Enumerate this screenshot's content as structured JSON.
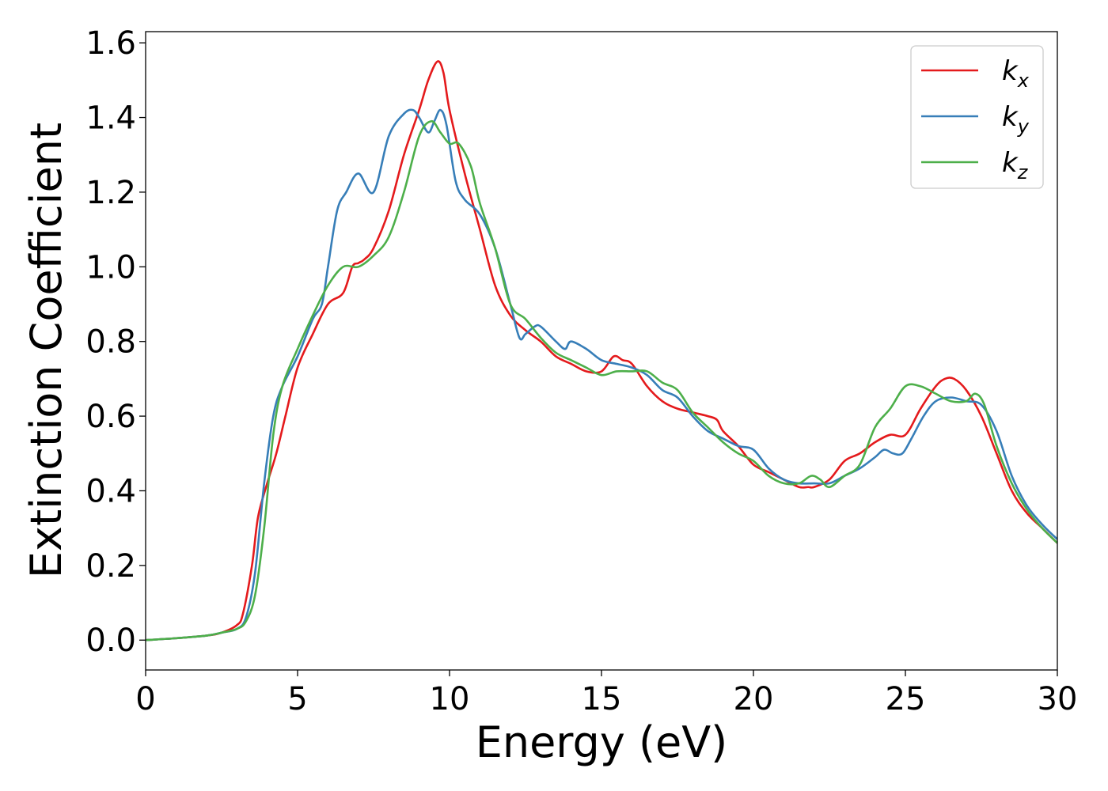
{
  "chart_data": {
    "type": "line",
    "xlabel": "Energy (eV)",
    "ylabel": "Extinction Coefficient",
    "xlim": [
      0,
      30
    ],
    "ylim": [
      -0.08,
      1.63
    ],
    "xticks": [
      0,
      5,
      10,
      15,
      20,
      25,
      30
    ],
    "yticks": [
      0.0,
      0.2,
      0.4,
      0.6,
      0.8,
      1.0,
      1.2,
      1.4,
      1.6
    ],
    "xtick_labels": [
      "0",
      "5",
      "10",
      "15",
      "20",
      "25",
      "30"
    ],
    "ytick_labels": [
      "0.0",
      "0.2",
      "0.4",
      "0.6",
      "0.8",
      "1.0",
      "1.2",
      "1.4",
      "1.6"
    ],
    "grid": false,
    "legend_position": "top-right",
    "series": [
      {
        "name": "k_x",
        "legend_main": "k",
        "legend_sub": "x",
        "color": "#e41a1c",
        "x": [
          0,
          1,
          2,
          2.5,
          3,
          3.2,
          3.5,
          3.7,
          4,
          4.3,
          4.6,
          5,
          5.5,
          6,
          6.5,
          6.8,
          7,
          7.2,
          7.5,
          8,
          8.5,
          9,
          9.3,
          9.6,
          9.8,
          10,
          10.5,
          11,
          11.5,
          12,
          12.5,
          13,
          13.5,
          14,
          14.5,
          15,
          15.4,
          15.7,
          16,
          16.5,
          17,
          17.5,
          18,
          18.5,
          18.8,
          19,
          19.5,
          20,
          20.5,
          21,
          21.5,
          21.8,
          22,
          22.5,
          23,
          23.5,
          24,
          24.5,
          25,
          25.5,
          26,
          26.3,
          26.6,
          27,
          27.5,
          28,
          28.5,
          29,
          29.5,
          30
        ],
        "y": [
          0,
          0.005,
          0.012,
          0.02,
          0.04,
          0.07,
          0.2,
          0.33,
          0.42,
          0.5,
          0.6,
          0.73,
          0.82,
          0.9,
          0.93,
          1.0,
          1.01,
          1.02,
          1.05,
          1.15,
          1.3,
          1.42,
          1.5,
          1.55,
          1.52,
          1.42,
          1.25,
          1.1,
          0.95,
          0.87,
          0.83,
          0.8,
          0.76,
          0.74,
          0.72,
          0.72,
          0.76,
          0.75,
          0.74,
          0.68,
          0.64,
          0.62,
          0.61,
          0.6,
          0.59,
          0.56,
          0.52,
          0.47,
          0.45,
          0.43,
          0.41,
          0.41,
          0.41,
          0.43,
          0.48,
          0.5,
          0.53,
          0.55,
          0.55,
          0.62,
          0.68,
          0.7,
          0.7,
          0.67,
          0.6,
          0.5,
          0.4,
          0.34,
          0.3,
          0.26
        ]
      },
      {
        "name": "k_y",
        "legend_main": "k",
        "legend_sub": "y",
        "color": "#377eb8",
        "x": [
          0,
          1,
          2,
          2.5,
          3,
          3.3,
          3.6,
          3.9,
          4.2,
          4.5,
          5,
          5.5,
          5.8,
          6,
          6.3,
          6.6,
          7,
          7.5,
          8,
          8.5,
          8.8,
          9,
          9.3,
          9.5,
          9.7,
          9.9,
          10.2,
          10.5,
          11,
          11.5,
          12,
          12.3,
          12.5,
          12.8,
          13,
          13.5,
          13.8,
          14,
          14.5,
          15,
          15.5,
          16,
          16.5,
          17,
          17.5,
          18,
          18.5,
          19,
          19.5,
          20,
          20.5,
          21,
          21.5,
          22,
          22.5,
          23,
          23.5,
          24,
          24.3,
          24.6,
          24.9,
          25.2,
          25.6,
          26,
          26.5,
          27,
          27.5,
          28,
          28.5,
          29,
          29.5,
          30
        ],
        "y": [
          0,
          0.005,
          0.012,
          0.02,
          0.03,
          0.06,
          0.18,
          0.42,
          0.6,
          0.68,
          0.76,
          0.86,
          0.9,
          1.0,
          1.15,
          1.2,
          1.25,
          1.2,
          1.35,
          1.41,
          1.42,
          1.4,
          1.36,
          1.39,
          1.42,
          1.38,
          1.23,
          1.18,
          1.14,
          1.05,
          0.9,
          0.81,
          0.82,
          0.84,
          0.84,
          0.8,
          0.78,
          0.8,
          0.78,
          0.75,
          0.74,
          0.73,
          0.71,
          0.67,
          0.65,
          0.6,
          0.56,
          0.54,
          0.52,
          0.51,
          0.46,
          0.43,
          0.42,
          0.42,
          0.42,
          0.44,
          0.46,
          0.49,
          0.51,
          0.5,
          0.5,
          0.54,
          0.6,
          0.64,
          0.65,
          0.64,
          0.63,
          0.56,
          0.44,
          0.36,
          0.31,
          0.27
        ]
      },
      {
        "name": "k_z",
        "legend_main": "k",
        "legend_sub": "z",
        "color": "#4daf4a",
        "x": [
          0,
          1,
          2,
          2.5,
          3,
          3.3,
          3.6,
          3.9,
          4.2,
          4.5,
          5,
          5.5,
          6,
          6.5,
          7,
          7.5,
          8,
          8.5,
          9,
          9.4,
          9.7,
          10,
          10.3,
          10.7,
          11,
          11.5,
          12,
          12.5,
          13,
          13.5,
          14,
          14.5,
          15,
          15.5,
          16,
          16.5,
          17,
          17.5,
          18,
          18.5,
          19,
          19.5,
          20,
          20.5,
          21,
          21.5,
          21.9,
          22.2,
          22.5,
          23,
          23.5,
          24,
          24.5,
          25,
          25.5,
          26,
          26.5,
          27,
          27.3,
          27.6,
          28,
          28.5,
          29,
          29.5,
          30
        ],
        "y": [
          0,
          0.005,
          0.012,
          0.02,
          0.03,
          0.05,
          0.12,
          0.3,
          0.55,
          0.68,
          0.78,
          0.87,
          0.95,
          1.0,
          1.0,
          1.03,
          1.08,
          1.2,
          1.35,
          1.39,
          1.36,
          1.33,
          1.33,
          1.27,
          1.17,
          1.05,
          0.9,
          0.86,
          0.81,
          0.77,
          0.75,
          0.73,
          0.71,
          0.72,
          0.72,
          0.72,
          0.69,
          0.67,
          0.61,
          0.57,
          0.53,
          0.5,
          0.48,
          0.44,
          0.42,
          0.42,
          0.44,
          0.43,
          0.41,
          0.44,
          0.47,
          0.57,
          0.62,
          0.68,
          0.68,
          0.66,
          0.64,
          0.64,
          0.66,
          0.63,
          0.52,
          0.42,
          0.35,
          0.3,
          0.26
        ]
      }
    ]
  }
}
